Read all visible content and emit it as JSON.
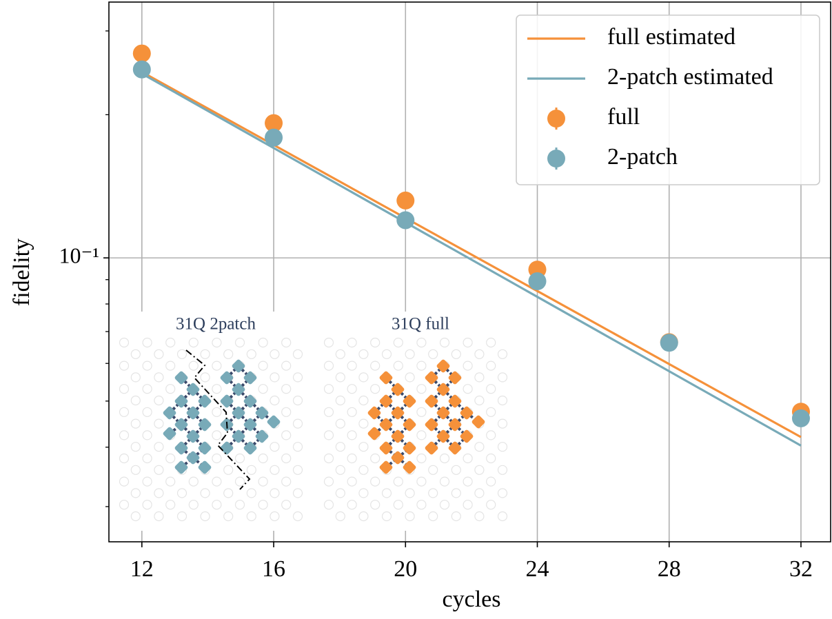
{
  "chart_data": {
    "type": "scatter",
    "x_label": "cycles",
    "y_label": "fidelity",
    "xlim": [
      11,
      32.9
    ],
    "xticks": [
      12,
      16,
      20,
      24,
      28,
      32
    ],
    "ylim": [
      0.0253,
      0.345
    ],
    "y_scale": "log",
    "yticks": [
      {
        "value": 0.1,
        "label": "10⁻¹"
      }
    ],
    "yminorticks": [
      0.03,
      0.04,
      0.05,
      0.06,
      0.07,
      0.08,
      0.09,
      0.2,
      0.3
    ],
    "grid": true,
    "legend": "upper right",
    "series": [
      {
        "name": "full estimated",
        "kind": "line",
        "color": "#f5913a",
        "x": [
          12,
          32
        ],
        "values": [
          0.246,
          0.042
        ]
      },
      {
        "name": "2-patch estimated",
        "kind": "line",
        "color": "#78aab8",
        "x": [
          12,
          32
        ],
        "values": [
          0.244,
          0.0403
        ]
      },
      {
        "name": "full",
        "kind": "marker",
        "color": "#f5913a",
        "x": [
          12,
          16,
          20,
          24,
          28,
          32
        ],
        "values": [
          0.269,
          0.192,
          0.132,
          0.0945,
          0.0665,
          0.0475
        ]
      },
      {
        "name": "2-patch",
        "kind": "marker",
        "color": "#78aab8",
        "x": [
          12,
          16,
          20,
          24,
          28,
          32
        ],
        "values": [
          0.249,
          0.179,
          0.12,
          0.0893,
          0.0663,
          0.046
        ]
      }
    ],
    "insets": [
      {
        "title": "31Q 2patch",
        "color": "#78aab8"
      },
      {
        "title": "31Q full",
        "color": "#f5913a"
      }
    ]
  }
}
